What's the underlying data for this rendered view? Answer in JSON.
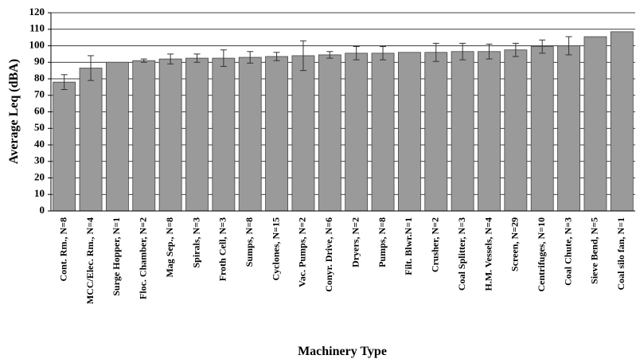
{
  "chart_data": {
    "type": "bar",
    "x_label": "Machinery Type",
    "y_label": "Average Leq (dBA)",
    "categories": [
      "Cont. Rm., N=8",
      "MCC/Elec. Rm., N=4",
      "Surge Hopper, N=1",
      "Floc. Chamber, N=2",
      "Mag Sep., N=8",
      "Spirals, N=3",
      "Froth Cell, N=3",
      "Sumps, N=8",
      "Cyclones, N=15",
      "Vac. Pumps, N=2",
      "Conyr. Drive, N=6",
      "Dryers, N=2",
      "Pumps, N=8",
      "Filt. Blwr.N=1",
      "Crusher, N=2",
      "Coal Splitter, N=3",
      "H.M. Vessels, N=4",
      "Screen, N=29",
      "Centrifuges, N=10",
      "Coal Chute, N=3",
      "Sieve Bend, N=5",
      "Coal silo fan, N=1"
    ],
    "values": [
      78,
      86.5,
      90,
      91,
      92,
      92.5,
      92.5,
      93,
      93.5,
      94,
      94.5,
      95.5,
      95.5,
      96,
      96,
      96.5,
      96.5,
      97.5,
      99.5,
      100,
      105.5,
      108.5
    ],
    "errors": [
      4.5,
      7.5,
      null,
      1,
      3,
      2.5,
      5,
      3.5,
      2.5,
      9,
      2,
      4,
      4,
      null,
      5.5,
      5,
      4.5,
      4,
      4,
      5.5,
      null,
      null
    ],
    "color": "#9a9a9a",
    "ylim": [
      0,
      120
    ],
    "yticks": [
      0,
      10,
      20,
      30,
      40,
      50,
      60,
      70,
      80,
      90,
      100,
      110,
      120
    ],
    "grid": true
  }
}
